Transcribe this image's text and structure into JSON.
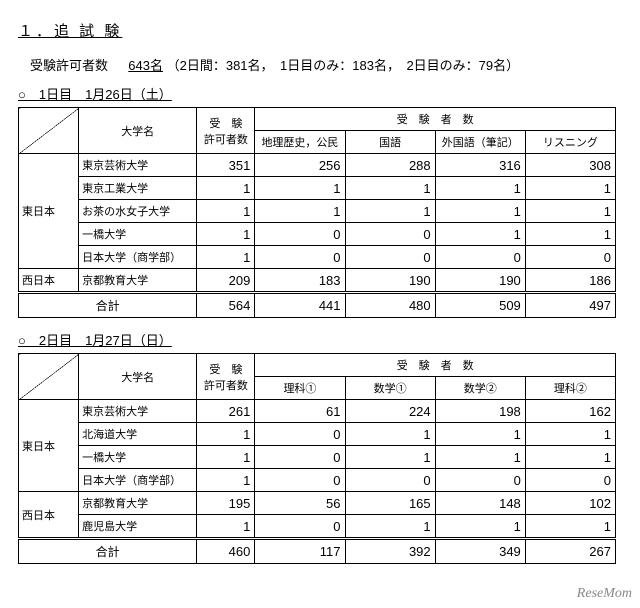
{
  "title": "１．追 試 験",
  "summary": {
    "label": "受験許可者数",
    "total": "643名",
    "breakdown": "（2日間：381名，　1日目のみ：183名，　2日目のみ：79名）"
  },
  "day1": {
    "heading": "○　1日目　1月26日（土）",
    "headers": {
      "uni": "大学名",
      "allowed1": "受　験",
      "allowed2": "許可者数",
      "subjects_super": "受　験　者　数",
      "s1": "地理歴史，公民",
      "s2": "国語",
      "s3": "外国語（筆記）",
      "s4": "リスニング"
    },
    "regions": [
      {
        "name": "東日本",
        "rows": [
          {
            "uni": "東京芸術大学",
            "v": [
              351,
              256,
              288,
              316,
              308
            ]
          },
          {
            "uni": "東京工業大学",
            "v": [
              1,
              1,
              1,
              1,
              1
            ]
          },
          {
            "uni": "お茶の水女子大学",
            "v": [
              1,
              1,
              1,
              1,
              1
            ]
          },
          {
            "uni": "一橋大学",
            "v": [
              1,
              0,
              0,
              1,
              1
            ]
          },
          {
            "uni": "日本大学（商学部）",
            "v": [
              1,
              0,
              0,
              0,
              0
            ]
          }
        ]
      },
      {
        "name": "西日本",
        "rows": [
          {
            "uni": "京都教育大学",
            "v": [
              209,
              183,
              190,
              190,
              186
            ]
          }
        ]
      }
    ],
    "total_label": "合計",
    "totals": [
      564,
      441,
      480,
      509,
      497
    ]
  },
  "day2": {
    "heading": "○　2日目　1月27日（日）",
    "headers": {
      "uni": "大学名",
      "allowed1": "受　験",
      "allowed2": "許可者数",
      "subjects_super": "受　験　者　数",
      "s1": "理科①",
      "s2": "数学①",
      "s3": "数学②",
      "s4": "理科②"
    },
    "regions": [
      {
        "name": "東日本",
        "rows": [
          {
            "uni": "東京芸術大学",
            "v": [
              261,
              61,
              224,
              198,
              162
            ]
          },
          {
            "uni": "北海道大学",
            "v": [
              1,
              0,
              1,
              1,
              1
            ]
          },
          {
            "uni": "一橋大学",
            "v": [
              1,
              0,
              1,
              1,
              1
            ]
          },
          {
            "uni": "日本大学（商学部）",
            "v": [
              1,
              0,
              0,
              0,
              0
            ]
          }
        ]
      },
      {
        "name": "西日本",
        "rows": [
          {
            "uni": "京都教育大学",
            "v": [
              195,
              56,
              165,
              148,
              102
            ]
          },
          {
            "uni": "鹿児島大学",
            "v": [
              1,
              0,
              1,
              1,
              1
            ]
          }
        ]
      }
    ],
    "total_label": "合計",
    "totals": [
      460,
      117,
      392,
      349,
      267
    ]
  },
  "watermark": "ReseMom"
}
